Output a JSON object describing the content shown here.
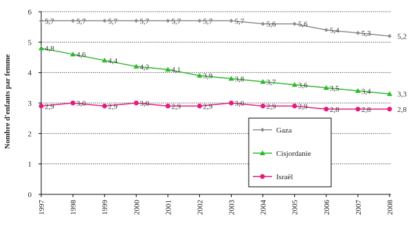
{
  "chart_data": {
    "type": "line",
    "ylabel": "Nombre d'enfants par femme",
    "xlabel": "",
    "ylim": [
      0,
      6
    ],
    "yticks": [
      "0",
      "1",
      "2",
      "3",
      "4",
      "5",
      "6"
    ],
    "grid": "horizontal dashed",
    "legend_position": "bottom-right",
    "x": [
      "1997",
      "1998",
      "1999",
      "2000",
      "2001",
      "2002",
      "2003",
      "2004",
      "2005",
      "2006",
      "2007",
      "2008"
    ],
    "series": [
      {
        "name": "Gaza",
        "color": "#8c8c8c",
        "marker": "diamond",
        "values": [
          5.7,
          5.7,
          5.7,
          5.7,
          5.7,
          5.7,
          5.7,
          5.6,
          5.6,
          5.4,
          5.3,
          5.2
        ],
        "labels": [
          "5,7",
          "5,7",
          "5,7",
          "5,7",
          "5,7",
          "5,7",
          "5,7",
          "5,6",
          "5,6",
          "5,4",
          "5,3",
          "5,2"
        ]
      },
      {
        "name": "Cisjordanie",
        "color": "#2eb82e",
        "marker": "triangle",
        "values": [
          4.8,
          4.6,
          4.4,
          4.2,
          4.1,
          3.9,
          3.8,
          3.7,
          3.6,
          3.5,
          3.4,
          3.3
        ],
        "labels": [
          "4,8",
          "4,6",
          "4,4",
          "4,2",
          "4,1",
          "3,9",
          "3,8",
          "3,7",
          "3,6",
          "3,5",
          "3,4",
          "3,3"
        ]
      },
      {
        "name": "Israël",
        "color": "#e6197d",
        "marker": "circle",
        "values": [
          2.9,
          3.0,
          2.9,
          3.0,
          2.9,
          2.9,
          3.0,
          2.9,
          2.9,
          2.8,
          2.8,
          2.8
        ],
        "labels": [
          "2,9",
          "3,0",
          "2,9",
          "3,0",
          "2,9",
          "2,9",
          "3,0",
          "2,9",
          "2,9",
          "2,8",
          "2,8",
          "2,8"
        ]
      }
    ]
  }
}
